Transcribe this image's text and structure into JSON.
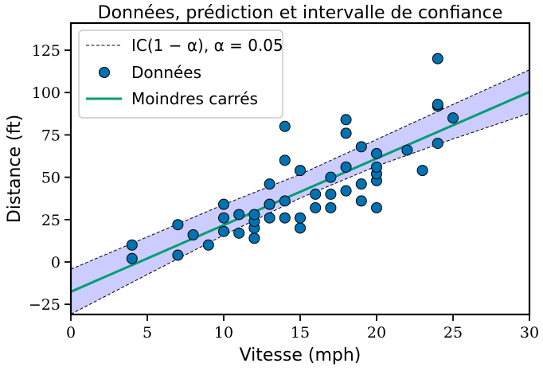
{
  "chart_data": {
    "type": "scatter",
    "title": "Données, prédiction et intervalle de confiance",
    "xlabel": "Vitesse (mph)",
    "ylabel": "Distance (ft)",
    "xlim": [
      0,
      30
    ],
    "ylim": [
      -31,
      141
    ],
    "xticks": [
      0,
      5,
      10,
      15,
      20,
      25,
      30
    ],
    "xtick_labels": [
      "0",
      "5",
      "10",
      "15",
      "20",
      "25",
      "30"
    ],
    "yticks": [
      -25,
      0,
      25,
      50,
      75,
      100,
      125
    ],
    "ytick_labels": [
      "−25",
      "0",
      "25",
      "50",
      "75",
      "100",
      "125"
    ],
    "grid": false,
    "legend_position": "top-left",
    "legend": [
      {
        "label": "IC(1 − α), α = 0.05",
        "kind": "dashed-line"
      },
      {
        "label": "Données",
        "kind": "marker"
      },
      {
        "label": "Moindres carrés",
        "kind": "line"
      }
    ],
    "series": [
      {
        "name": "Données",
        "kind": "scatter",
        "color": "#0072b2",
        "points": [
          [
            4,
            2
          ],
          [
            4,
            10
          ],
          [
            7,
            4
          ],
          [
            7,
            22
          ],
          [
            8,
            16
          ],
          [
            9,
            10
          ],
          [
            10,
            18
          ],
          [
            10,
            26
          ],
          [
            10,
            34
          ],
          [
            11,
            17
          ],
          [
            11,
            28
          ],
          [
            12,
            14
          ],
          [
            12,
            20
          ],
          [
            12,
            24
          ],
          [
            12,
            28
          ],
          [
            13,
            26
          ],
          [
            13,
            34
          ],
          [
            13,
            34
          ],
          [
            13,
            46
          ],
          [
            14,
            26
          ],
          [
            14,
            36
          ],
          [
            14,
            60
          ],
          [
            14,
            80
          ],
          [
            15,
            20
          ],
          [
            15,
            26
          ],
          [
            15,
            54
          ],
          [
            16,
            32
          ],
          [
            16,
            40
          ],
          [
            17,
            32
          ],
          [
            17,
            40
          ],
          [
            17,
            50
          ],
          [
            18,
            42
          ],
          [
            18,
            56
          ],
          [
            18,
            76
          ],
          [
            18,
            84
          ],
          [
            19,
            36
          ],
          [
            19,
            46
          ],
          [
            19,
            68
          ],
          [
            20,
            32
          ],
          [
            20,
            48
          ],
          [
            20,
            52
          ],
          [
            20,
            56
          ],
          [
            20,
            64
          ],
          [
            22,
            66
          ],
          [
            23,
            54
          ],
          [
            24,
            70
          ],
          [
            24,
            92
          ],
          [
            24,
            93
          ],
          [
            24,
            120
          ],
          [
            25,
            85
          ]
        ]
      },
      {
        "name": "Moindres carrés",
        "kind": "line",
        "color": "#009e73",
        "intercept": -17.579,
        "slope": 3.932
      },
      {
        "name": "IC(1 − α), α = 0.05",
        "kind": "band",
        "color": "#000000",
        "fill": "#ccccff",
        "x": [
          0,
          5,
          10,
          15,
          20,
          25,
          30
        ],
        "lower": [
          -30.8,
          -7.4,
          15.8,
          37.7,
          56.6,
          72.6,
          87.8
        ],
        "upper": [
          -4.3,
          14.8,
          33.9,
          51.7,
          72.3,
          93.0,
          113.4
        ]
      }
    ]
  }
}
